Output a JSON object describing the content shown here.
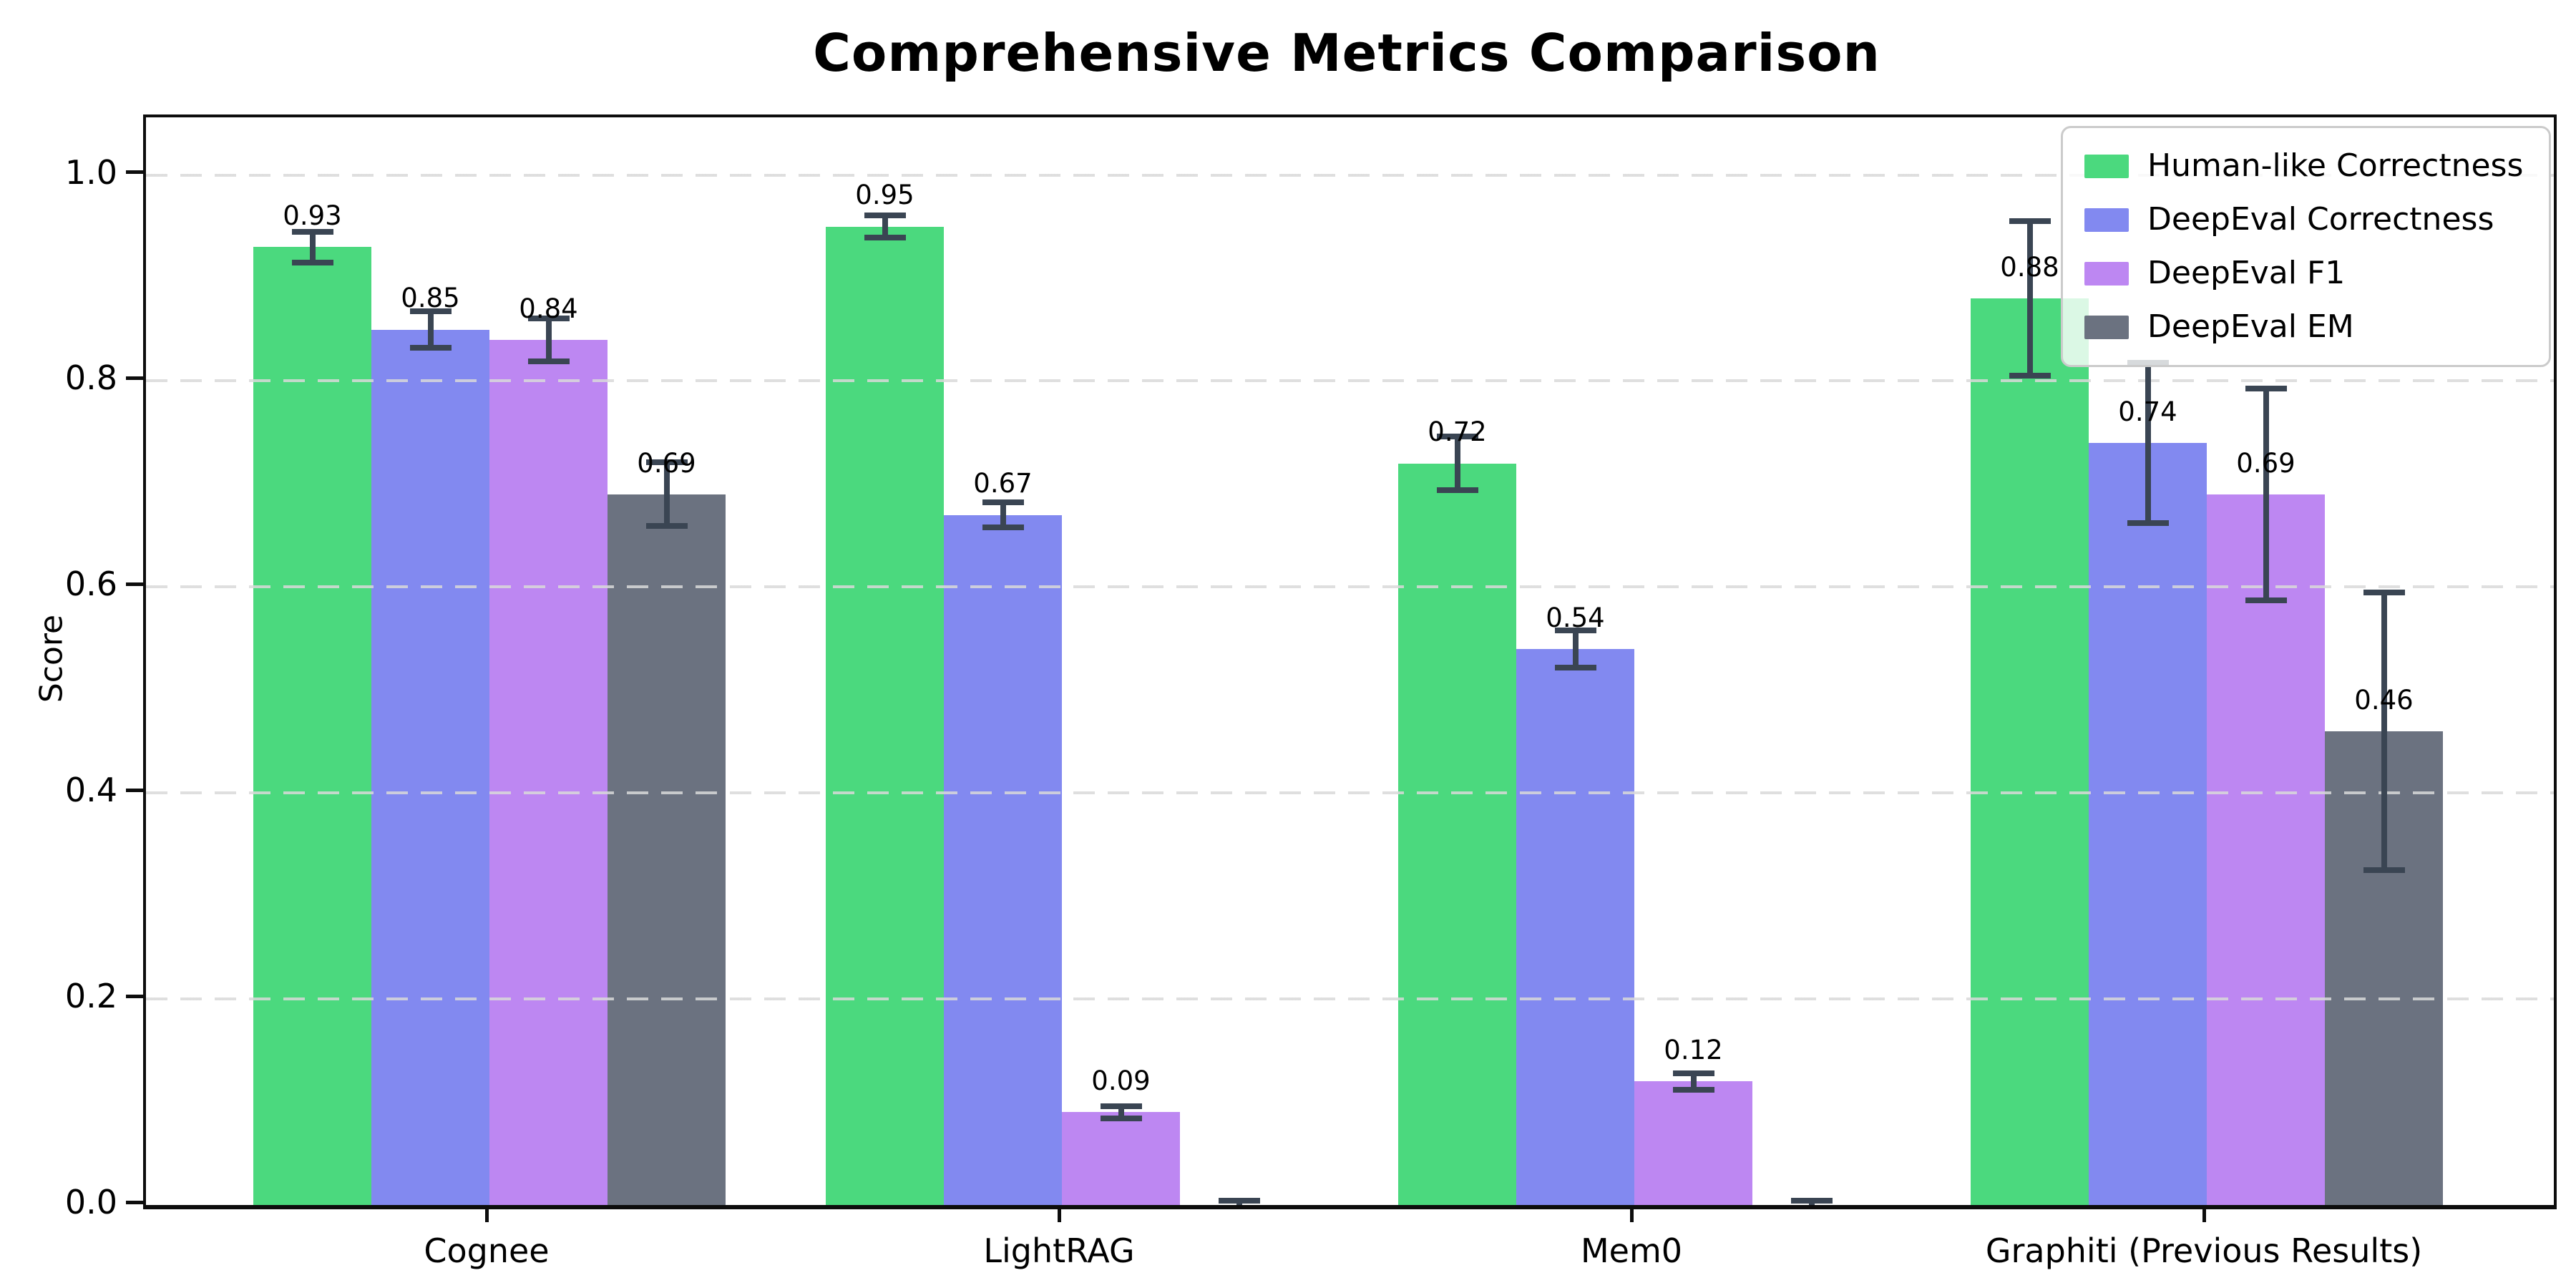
{
  "title": "Comprehensive Metrics Comparison",
  "ylabel": "Score",
  "chart_data": {
    "type": "bar",
    "title": "Comprehensive Metrics Comparison",
    "xlabel": "",
    "ylabel": "Score",
    "categories": [
      "Cognee",
      "LightRAG",
      "Mem0",
      "Graphiti (Previous Results)"
    ],
    "series": [
      {
        "name": "Human-like Correctness",
        "color": "#4bd97e",
        "values": [
          0.93,
          0.95,
          0.72,
          0.88
        ],
        "errors": [
          0.015,
          0.011,
          0.026,
          0.075
        ]
      },
      {
        "name": "DeepEval Correctness",
        "color": "#8289f0",
        "values": [
          0.85,
          0.67,
          0.54,
          0.74
        ],
        "errors": [
          0.018,
          0.012,
          0.018,
          0.078
        ]
      },
      {
        "name": "DeepEval F1",
        "color": "#bd87f2",
        "values": [
          0.84,
          0.09,
          0.12,
          0.69
        ],
        "errors": [
          0.021,
          0.006,
          0.008,
          0.103
        ]
      },
      {
        "name": "DeepEval EM",
        "color": "#6b7280",
        "values": [
          0.69,
          0.0,
          0.0,
          0.46
        ],
        "errors": [
          0.031,
          0.004,
          0.004,
          0.135
        ]
      }
    ],
    "bar_value_labels_decimals": 2,
    "hide_label_for_zero_bars": true,
    "y_ticks": [
      0.0,
      0.2,
      0.4,
      0.6,
      0.8,
      1.0
    ],
    "y_tick_decimals": 1,
    "ylim": [
      0.0,
      1.056
    ],
    "grid": "horizontal-dashed",
    "legend_position": "upper-right",
    "colors": {
      "error_bar": "#3a4553",
      "grid_line": "#d9d9d9",
      "axis": "#0d0d0d",
      "background": "#ffffff",
      "legend_border": "#cbcbcb"
    }
  }
}
